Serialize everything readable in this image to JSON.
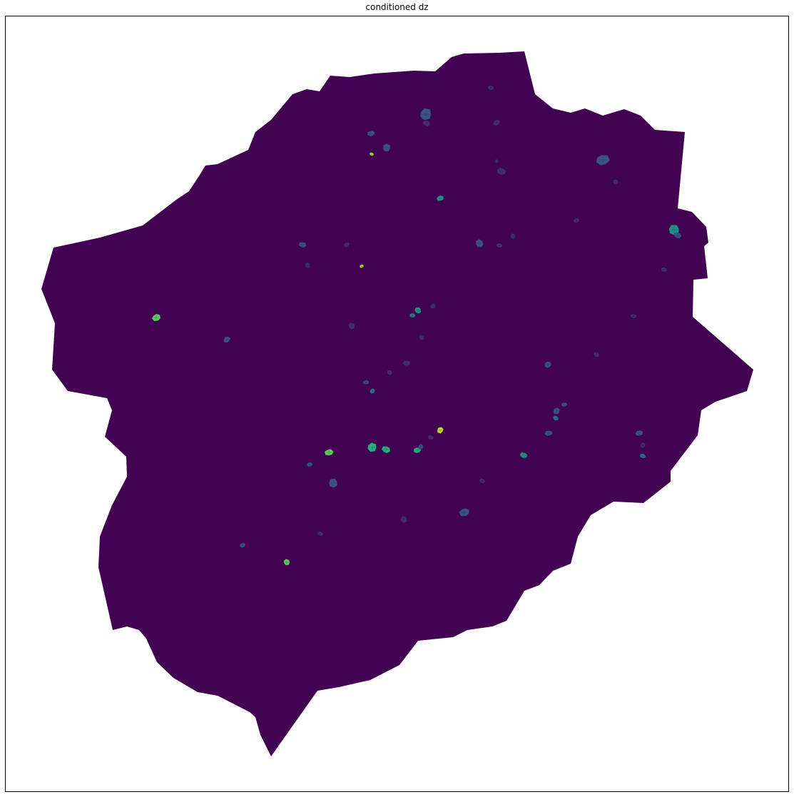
{
  "chart_data": {
    "type": "heatmap",
    "title": "conditioned dz",
    "xlabel": "",
    "ylabel": "",
    "colormap": "viridis",
    "background_value_color": "#440154",
    "mesh_edge_color": "#2a1437",
    "grid": false,
    "axis_ticks": false,
    "legend": "none",
    "colorbar": "none"
  }
}
